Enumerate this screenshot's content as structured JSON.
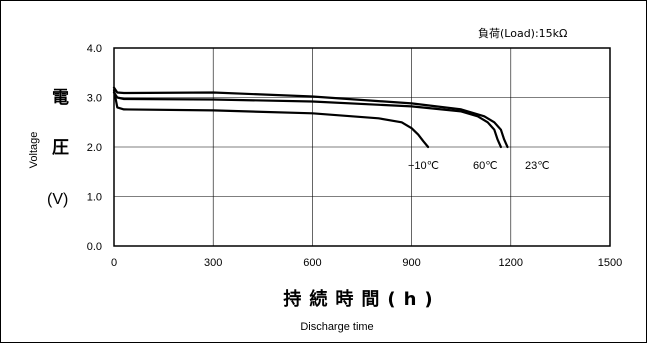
{
  "chart_data": {
    "type": "line",
    "annotation": "負荷(Load):15kΩ",
    "ylabel_jp": [
      "電",
      "圧"
    ],
    "ylabel_unit": "(V)",
    "ylabel_en": "Voltage",
    "xlabel_jp": "持続時間(h)",
    "xlabel_en": "Discharge time",
    "xlim": [
      0,
      1500
    ],
    "ylim": [
      0.0,
      4.0
    ],
    "x_ticks": [
      0,
      300,
      600,
      900,
      1200,
      1500
    ],
    "x_tick_labels": [
      "0",
      "300",
      "600",
      "900",
      "1200",
      "1500"
    ],
    "y_ticks": [
      0.0,
      1.0,
      2.0,
      3.0,
      4.0
    ],
    "y_tick_labels": [
      "0.0",
      "1.0",
      "2.0",
      "3.0",
      "4.0"
    ],
    "grid": true,
    "series": [
      {
        "name": "23℃",
        "x": [
          0,
          10,
          30,
          300,
          600,
          900,
          1050,
          1120,
          1150,
          1170,
          1180,
          1190
        ],
        "y": [
          3.2,
          3.1,
          3.09,
          3.1,
          3.02,
          2.88,
          2.76,
          2.62,
          2.5,
          2.35,
          2.15,
          2.0
        ]
      },
      {
        "name": "60℃",
        "x": [
          0,
          10,
          30,
          300,
          600,
          900,
          1050,
          1100,
          1130,
          1150,
          1160,
          1170
        ],
        "y": [
          3.1,
          3.0,
          2.97,
          2.96,
          2.92,
          2.82,
          2.72,
          2.62,
          2.5,
          2.35,
          2.15,
          2.0
        ]
      },
      {
        "name": "−10℃",
        "x": [
          0,
          10,
          30,
          300,
          600,
          800,
          870,
          900,
          920,
          935,
          950
        ],
        "y": [
          3.15,
          2.8,
          2.76,
          2.74,
          2.68,
          2.58,
          2.5,
          2.38,
          2.25,
          2.12,
          2.0
        ]
      }
    ]
  }
}
